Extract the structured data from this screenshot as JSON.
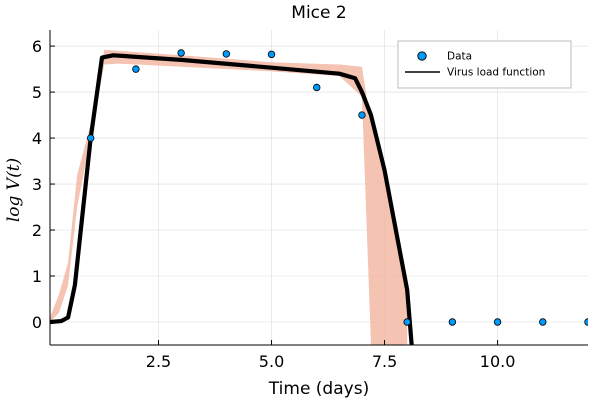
{
  "chart_data": {
    "type": "scatter",
    "title": "Mice 2",
    "xlabel": "Time (days)",
    "ylabel": "log V(t)",
    "xlim": [
      0.1,
      12.0
    ],
    "ylim": [
      -0.5,
      6.35
    ],
    "x_ticks": [
      2.5,
      5.0,
      7.5,
      10.0
    ],
    "x_tick_labels": [
      "2.5",
      "5.0",
      "7.5",
      "10.0"
    ],
    "y_ticks": [
      0,
      1,
      2,
      3,
      4,
      5,
      6
    ],
    "y_tick_labels": [
      "0",
      "1",
      "2",
      "3",
      "4",
      "5",
      "6"
    ],
    "grid": true,
    "legend_position": "top-right",
    "legend": [
      "Data",
      "Virus load function"
    ],
    "series": [
      {
        "name": "Data",
        "kind": "scatter",
        "color": "#009AFA",
        "x": [
          0,
          1,
          2,
          3,
          4,
          5,
          6,
          7,
          8,
          9,
          10,
          11,
          12
        ],
        "y": [
          0,
          4.0,
          5.5,
          5.85,
          5.83,
          5.82,
          5.1,
          4.5,
          0,
          0,
          0,
          0,
          0
        ]
      },
      {
        "name": "Virus load function",
        "kind": "line",
        "color": "#000000",
        "x": [
          0.1,
          0.35,
          0.5,
          0.65,
          1.0,
          1.25,
          1.5,
          3.0,
          5.0,
          6.5,
          6.85,
          7.0,
          7.2,
          7.5,
          8.0,
          8.1
        ],
        "y": [
          0.0,
          0.02,
          0.1,
          0.8,
          4.0,
          5.75,
          5.8,
          5.7,
          5.53,
          5.4,
          5.3,
          5.0,
          4.5,
          3.3,
          0.7,
          -0.5
        ]
      },
      {
        "name": "confidence band",
        "kind": "band",
        "color": "#F2B9A4",
        "x": [
          0.1,
          0.3,
          0.5,
          0.7,
          1.0,
          1.3,
          1.6,
          3.0,
          5.0,
          6.5,
          7.0,
          7.2,
          7.5,
          7.8,
          8.0
        ],
        "lower": [
          0.0,
          0.2,
          0.8,
          2.5,
          4.0,
          5.6,
          5.62,
          5.55,
          5.45,
          5.35,
          4.9,
          -0.5,
          -0.5,
          -0.5,
          -0.5
        ],
        "upper": [
          0.1,
          0.6,
          1.3,
          3.2,
          4.3,
          5.92,
          5.9,
          5.8,
          5.65,
          5.6,
          5.55,
          4.3,
          3.3,
          1.9,
          0.6
        ]
      }
    ]
  }
}
